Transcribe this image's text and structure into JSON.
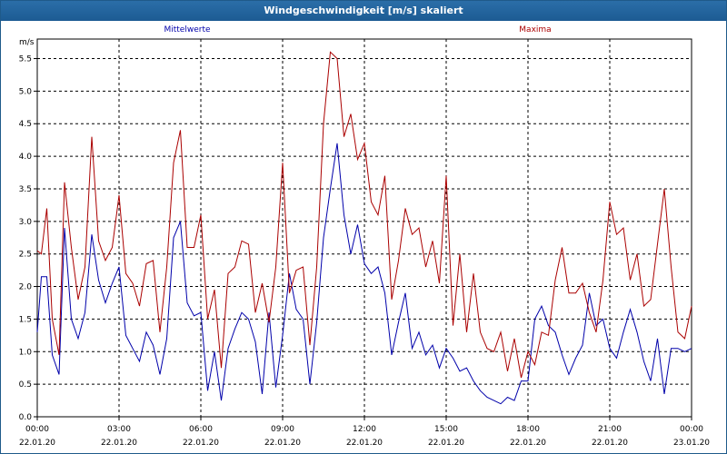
{
  "window": {
    "title": "Windgeschwindigkeit [m/s] skaliert"
  },
  "chart_data": {
    "type": "line",
    "title": "Windgeschwindigkeit [m/s] skaliert",
    "ylabel": "m/s",
    "xlabel": "",
    "ylim": [
      0,
      5.8
    ],
    "xlim": [
      0,
      24
    ],
    "grid": true,
    "legend_placement": "top",
    "y_ticks": [
      "0.0",
      "0.5",
      "1.0",
      "1.5",
      "2.0",
      "2.5",
      "3.0",
      "3.5",
      "4.0",
      "4.5",
      "5.0",
      "5.5"
    ],
    "x_ticks": [
      {
        "time": "00:00",
        "date": "22.01.20"
      },
      {
        "time": "03:00",
        "date": "22.01.20"
      },
      {
        "time": "06:00",
        "date": "22.01.20"
      },
      {
        "time": "09:00",
        "date": "22.01.20"
      },
      {
        "time": "12:00",
        "date": "22.01.20"
      },
      {
        "time": "15:00",
        "date": "22.01.20"
      },
      {
        "time": "18:00",
        "date": "22.01.20"
      },
      {
        "time": "21:00",
        "date": "22.01.20"
      },
      {
        "time": "00:00",
        "date": "23.01.20"
      }
    ],
    "series": [
      {
        "name": "Mittelwerte",
        "color": "#0000aa",
        "x": [
          0,
          0.15,
          0.35,
          0.55,
          0.8,
          1.0,
          1.25,
          1.5,
          1.75,
          2.0,
          2.25,
          2.5,
          2.75,
          3.0,
          3.25,
          3.5,
          3.75,
          4.0,
          4.25,
          4.5,
          4.75,
          5.0,
          5.25,
          5.5,
          5.75,
          6.0,
          6.25,
          6.5,
          6.75,
          7.0,
          7.25,
          7.5,
          7.75,
          8.0,
          8.25,
          8.5,
          8.75,
          9.0,
          9.25,
          9.5,
          9.75,
          10.0,
          10.25,
          10.5,
          10.75,
          11.0,
          11.25,
          11.5,
          11.75,
          12.0,
          12.25,
          12.5,
          12.75,
          13.0,
          13.25,
          13.5,
          13.75,
          14.0,
          14.25,
          14.5,
          14.75,
          15.0,
          15.25,
          15.5,
          15.75,
          16.0,
          16.25,
          16.5,
          16.75,
          17.0,
          17.25,
          17.5,
          17.75,
          18.0,
          18.25,
          18.5,
          18.75,
          19.0,
          19.25,
          19.5,
          19.75,
          20.0,
          20.25,
          20.5,
          20.75,
          21.0,
          21.25,
          21.5,
          21.75,
          22.0,
          22.25,
          22.5,
          22.75,
          23.0,
          23.25,
          23.5,
          23.75,
          24.0
        ],
        "values": [
          1.3,
          2.15,
          2.15,
          0.95,
          0.65,
          2.9,
          1.5,
          1.2,
          1.6,
          2.8,
          2.1,
          1.75,
          2.05,
          2.3,
          1.25,
          1.05,
          0.85,
          1.3,
          1.1,
          0.65,
          1.2,
          2.75,
          3.0,
          1.75,
          1.55,
          1.6,
          0.4,
          1.0,
          0.25,
          1.05,
          1.35,
          1.6,
          1.5,
          1.15,
          0.35,
          1.6,
          0.45,
          1.25,
          2.2,
          1.65,
          1.5,
          0.5,
          1.45,
          2.75,
          3.5,
          4.2,
          3.1,
          2.5,
          2.95,
          2.35,
          2.2,
          2.3,
          1.9,
          0.95,
          1.45,
          1.9,
          1.05,
          1.3,
          0.95,
          1.1,
          0.75,
          1.05,
          0.9,
          0.7,
          0.75,
          0.55,
          0.4,
          0.3,
          0.25,
          0.2,
          0.3,
          0.25,
          0.55,
          0.55,
          1.5,
          1.7,
          1.4,
          1.3,
          0.95,
          0.65,
          0.9,
          1.1,
          1.9,
          1.4,
          1.5,
          1.05,
          0.9,
          1.3,
          1.65,
          1.3,
          0.85,
          0.55,
          1.2,
          0.35,
          1.05,
          1.05,
          1.0,
          1.05
        ],
        "note_x_units": "hours since 22.01.20 00:00"
      },
      {
        "name": "Maxima",
        "color": "#aa0000",
        "x": [
          0,
          0.15,
          0.35,
          0.55,
          0.8,
          1.0,
          1.25,
          1.5,
          1.75,
          2.0,
          2.25,
          2.5,
          2.75,
          3.0,
          3.25,
          3.5,
          3.75,
          4.0,
          4.25,
          4.5,
          4.75,
          5.0,
          5.25,
          5.5,
          5.75,
          6.0,
          6.25,
          6.5,
          6.75,
          7.0,
          7.25,
          7.5,
          7.75,
          8.0,
          8.25,
          8.5,
          8.75,
          9.0,
          9.25,
          9.5,
          9.75,
          10.0,
          10.25,
          10.5,
          10.75,
          11.0,
          11.25,
          11.5,
          11.75,
          12.0,
          12.25,
          12.5,
          12.75,
          13.0,
          13.25,
          13.5,
          13.75,
          14.0,
          14.25,
          14.5,
          14.75,
          15.0,
          15.25,
          15.5,
          15.75,
          16.0,
          16.25,
          16.5,
          16.75,
          17.0,
          17.25,
          17.5,
          17.75,
          18.0,
          18.25,
          18.5,
          18.75,
          19.0,
          19.25,
          19.5,
          19.75,
          20.0,
          20.25,
          20.5,
          20.75,
          21.0,
          21.25,
          21.5,
          21.75,
          22.0,
          22.25,
          22.5,
          22.75,
          23.0,
          23.25,
          23.5,
          23.75,
          24.0
        ],
        "values": [
          2.55,
          2.5,
          3.2,
          1.5,
          0.95,
          3.6,
          2.6,
          1.8,
          2.3,
          4.3,
          2.7,
          2.4,
          2.6,
          3.4,
          2.2,
          2.05,
          1.7,
          2.35,
          2.4,
          1.3,
          2.3,
          3.9,
          4.4,
          2.6,
          2.6,
          3.1,
          1.5,
          1.95,
          0.75,
          2.2,
          2.3,
          2.7,
          2.65,
          1.6,
          2.05,
          1.45,
          2.3,
          3.9,
          1.9,
          2.25,
          2.3,
          1.1,
          2.3,
          4.5,
          5.6,
          5.5,
          4.3,
          4.65,
          3.95,
          4.2,
          3.3,
          3.1,
          3.7,
          1.8,
          2.4,
          3.2,
          2.8,
          2.9,
          2.3,
          2.7,
          2.05,
          3.7,
          1.4,
          2.5,
          1.3,
          2.2,
          1.3,
          1.05,
          1.0,
          1.3,
          0.7,
          1.2,
          0.6,
          1.0,
          0.8,
          1.3,
          1.25,
          2.1,
          2.6,
          1.9,
          1.9,
          2.05,
          1.6,
          1.3,
          2.1,
          3.3,
          2.8,
          2.9,
          2.1,
          2.5,
          1.7,
          1.8,
          2.65,
          3.5,
          2.3,
          1.3,
          1.2,
          1.7
        ]
      }
    ]
  }
}
